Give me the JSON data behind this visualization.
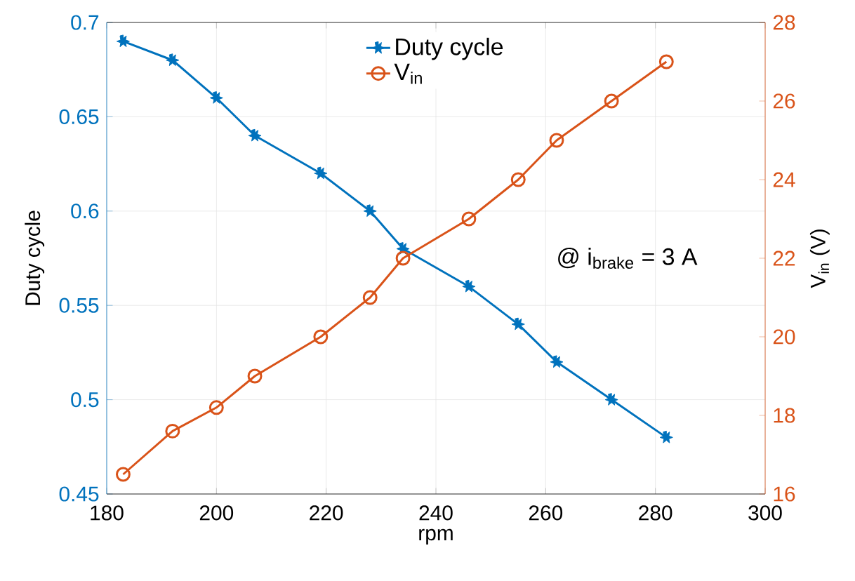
{
  "chart_data": {
    "type": "line",
    "xlabel": "rpm",
    "ylabel": "Duty cycle",
    "y2label": "V$_{in}$ (V)",
    "x": [
      183,
      192,
      200,
      207,
      219,
      228,
      234,
      246,
      255,
      262,
      272,
      282
    ],
    "series": [
      {
        "name": "Duty cycle",
        "color": "#0072bd",
        "marker": "star",
        "values": [
          0.69,
          0.68,
          0.66,
          0.64,
          0.62,
          0.6,
          0.58,
          0.56,
          0.54,
          0.52,
          0.5,
          0.48
        ]
      },
      {
        "name": "V$_{in}$",
        "color": "#d95319",
        "marker": "circle",
        "axis": "y2",
        "values": [
          16.5,
          17.6,
          18.2,
          19,
          20,
          21,
          22,
          23,
          24,
          25,
          26,
          27
        ]
      }
    ],
    "xlim": [
      180,
      300
    ],
    "xticks": [
      180,
      200,
      220,
      240,
      260,
      280,
      300
    ],
    "ylim": [
      0.45,
      0.7
    ],
    "yticks": [
      0.45,
      0.5,
      0.55,
      0.6,
      0.65,
      0.7
    ],
    "y2lim": [
      16,
      28
    ],
    "y2ticks": [
      16,
      18,
      20,
      22,
      24,
      26,
      28
    ],
    "annotations": [
      "@ i$_{brake}$ = 3 A"
    ],
    "grid": true,
    "legend": "top",
    "line_style": "solid"
  }
}
